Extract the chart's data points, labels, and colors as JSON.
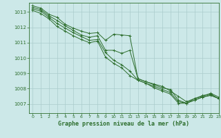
{
  "title": "Graphe pression niveau de la mer (hPa)",
  "bg_color": "#cce8e8",
  "grid_color": "#aacccc",
  "line_color": "#2d6e2d",
  "xlim": [
    -0.5,
    23
  ],
  "ylim": [
    1006.4,
    1013.6
  ],
  "yticks": [
    1007,
    1008,
    1009,
    1010,
    1011,
    1012,
    1013
  ],
  "xticks": [
    0,
    1,
    2,
    3,
    4,
    5,
    6,
    7,
    8,
    9,
    10,
    11,
    12,
    13,
    14,
    15,
    16,
    17,
    18,
    19,
    20,
    21,
    22,
    23
  ],
  "series": [
    [
      1013.4,
      1013.25,
      1012.85,
      1012.65,
      1012.2,
      1011.95,
      1011.75,
      1011.6,
      1011.65,
      1011.15,
      1011.55,
      1011.5,
      1011.45,
      1008.65,
      1008.45,
      1008.3,
      1008.15,
      1007.85,
      1007.5,
      1007.15,
      1007.35,
      1007.55,
      1007.65,
      1007.35
    ],
    [
      1013.3,
      1013.15,
      1012.75,
      1012.45,
      1012.1,
      1011.8,
      1011.5,
      1011.35,
      1011.45,
      1010.5,
      1010.5,
      1010.3,
      1010.5,
      1008.65,
      1008.45,
      1008.25,
      1008.05,
      1007.95,
      1007.25,
      1007.05,
      1007.35,
      1007.5,
      1007.7,
      1007.45
    ],
    [
      1013.2,
      1013.05,
      1012.65,
      1012.25,
      1011.95,
      1011.65,
      1011.4,
      1011.15,
      1011.2,
      1010.35,
      1009.85,
      1009.55,
      1009.15,
      1008.55,
      1008.35,
      1008.15,
      1007.95,
      1007.75,
      1007.15,
      1007.05,
      1007.25,
      1007.45,
      1007.6,
      1007.35
    ],
    [
      1013.1,
      1012.9,
      1012.55,
      1012.05,
      1011.75,
      1011.45,
      1011.2,
      1011.0,
      1011.1,
      1010.05,
      1009.65,
      1009.35,
      1008.85,
      1008.55,
      1008.35,
      1008.05,
      1007.85,
      1007.65,
      1007.05,
      1007.05,
      1007.25,
      1007.45,
      1007.55,
      1007.35
    ]
  ]
}
